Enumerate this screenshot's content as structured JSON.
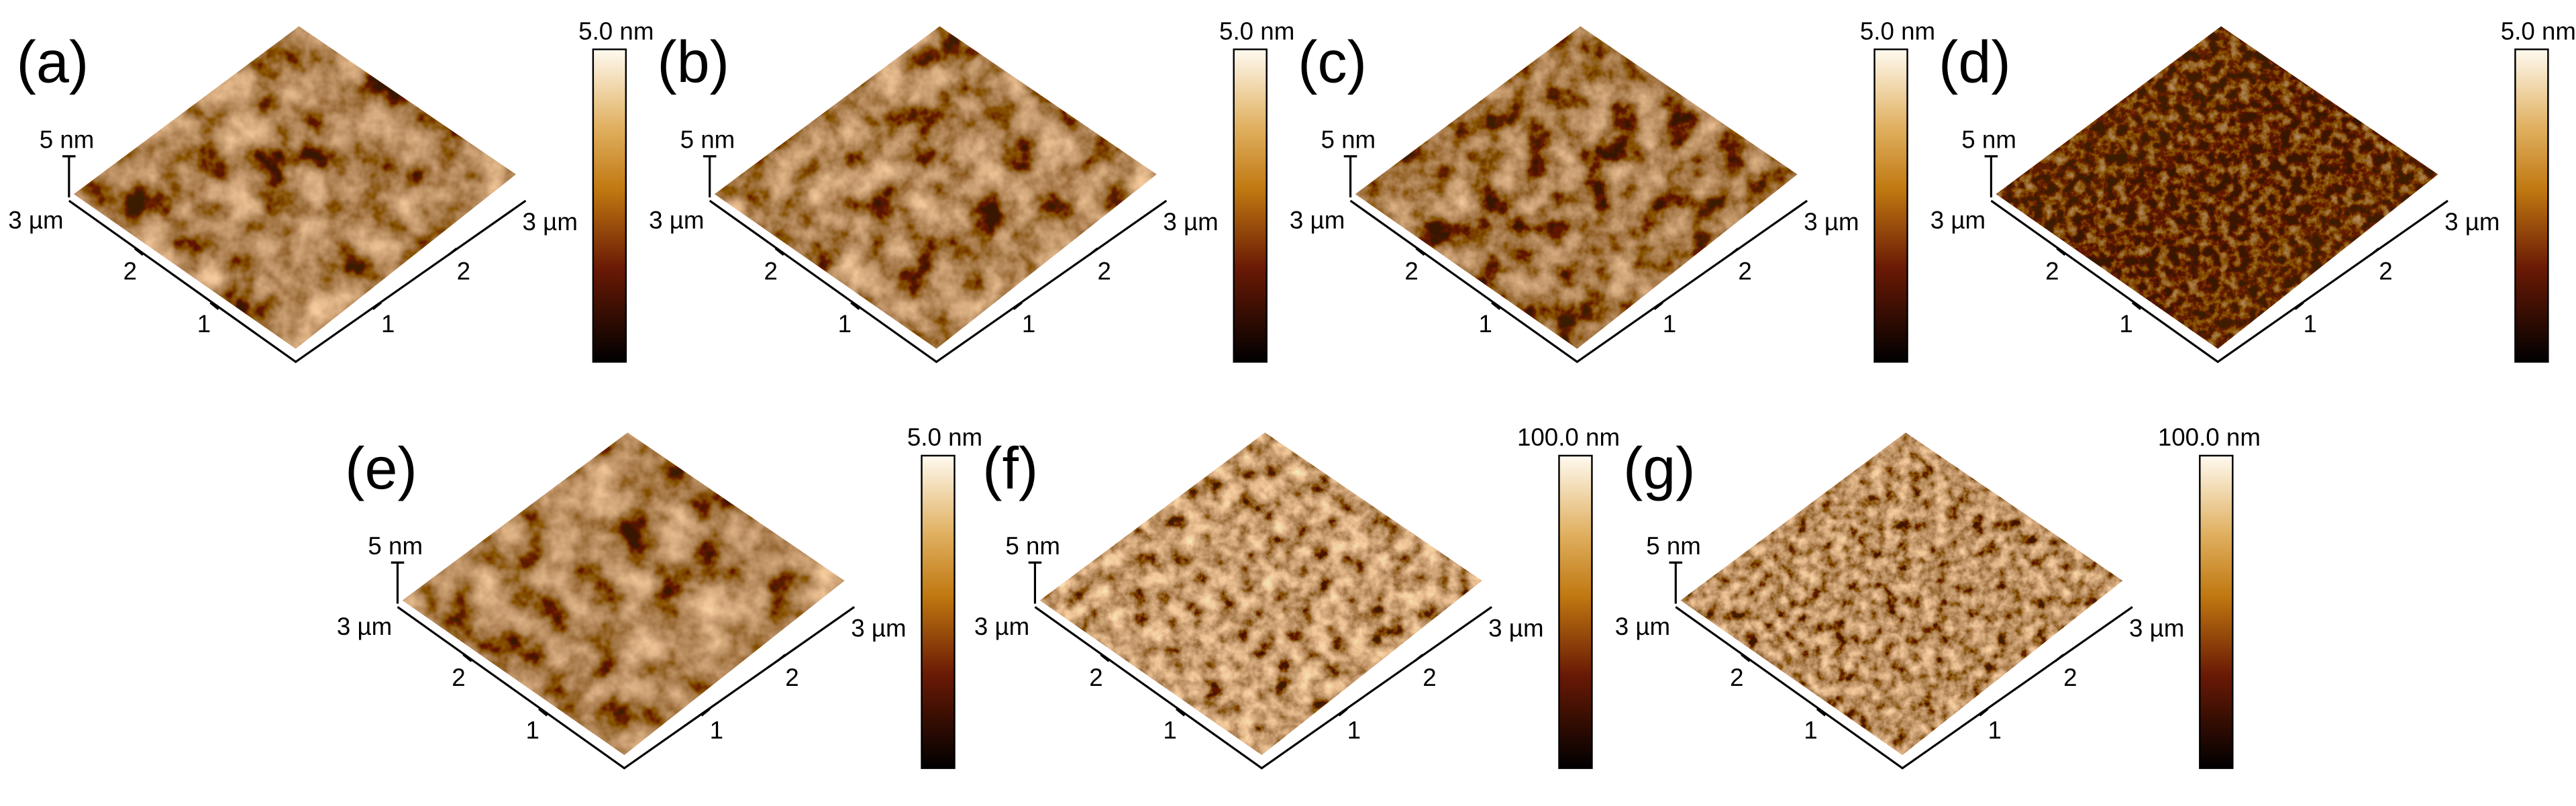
{
  "panels": [
    {
      "label": "(a)",
      "z_label": "5 nm",
      "left_axis_label": "3 µm",
      "right_axis_label": "3 µm",
      "left_ticks": [
        "2",
        "1"
      ],
      "right_ticks": [
        "1",
        "2"
      ],
      "colorbar_label": "5.0 nm"
    },
    {
      "label": "(b)",
      "z_label": "5 nm",
      "left_axis_label": "3 µm",
      "right_axis_label": "3 µm",
      "left_ticks": [
        "2",
        "1"
      ],
      "right_ticks": [
        "1",
        "2"
      ],
      "colorbar_label": "5.0 nm"
    },
    {
      "label": "(c)",
      "z_label": "5 nm",
      "left_axis_label": "3 µm",
      "right_axis_label": "3 µm",
      "left_ticks": [
        "2",
        "1"
      ],
      "right_ticks": [
        "1",
        "2"
      ],
      "colorbar_label": "5.0 nm"
    },
    {
      "label": "(d)",
      "z_label": "5 nm",
      "left_axis_label": "3 µm",
      "right_axis_label": "3 µm",
      "left_ticks": [
        "2",
        "1"
      ],
      "right_ticks": [
        "1",
        "2"
      ],
      "colorbar_label": "5.0 nm"
    },
    {
      "label": "(e)",
      "z_label": "5 nm",
      "left_axis_label": "3 µm",
      "right_axis_label": "3 µm",
      "left_ticks": [
        "2",
        "1"
      ],
      "right_ticks": [
        "1",
        "2"
      ],
      "colorbar_label": "5.0 nm"
    },
    {
      "label": "(f)",
      "z_label": "5 nm",
      "left_axis_label": "3 µm",
      "right_axis_label": "3 µm",
      "left_ticks": [
        "2",
        "1"
      ],
      "right_ticks": [
        "1",
        "2"
      ],
      "colorbar_label": "100.0 nm"
    },
    {
      "label": "(g)",
      "z_label": "5 nm",
      "left_axis_label": "3 µm",
      "right_axis_label": "3 µm",
      "left_ticks": [
        "2",
        "1"
      ],
      "right_ticks": [
        "1",
        "2"
      ],
      "colorbar_label": "100.0 nm"
    }
  ]
}
